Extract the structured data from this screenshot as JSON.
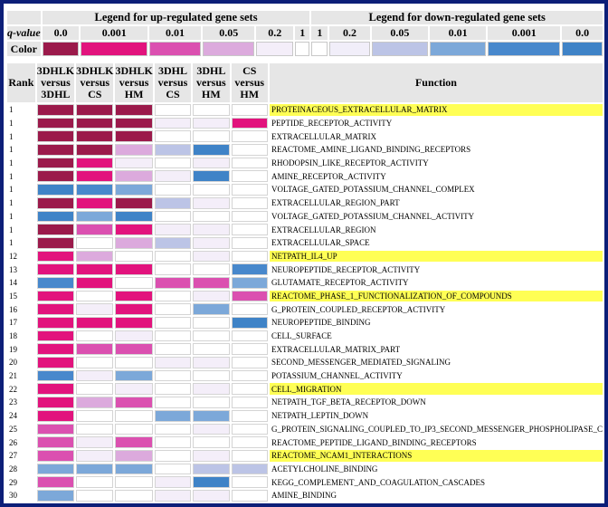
{
  "legend": {
    "up_title": "Legend for up-regulated gene sets",
    "down_title": "Legend for down-regulated gene sets",
    "q_label": "q-value",
    "color_label": "Color",
    "up": [
      {
        "q": "0.0",
        "color": "#9b1a4b"
      },
      {
        "q": "0.001",
        "color": "#e2137d"
      },
      {
        "q": "0.01",
        "color": "#db50b0"
      },
      {
        "q": "0.05",
        "color": "#dcaadd"
      },
      {
        "q": "0.2",
        "color": "#f4eef9"
      },
      {
        "q": "1",
        "color": "#ffffff"
      }
    ],
    "down": [
      {
        "q": "1",
        "color": "#ffffff"
      },
      {
        "q": "0.2",
        "color": "#f1eef9"
      },
      {
        "q": "0.05",
        "color": "#bcc4e6"
      },
      {
        "q": "0.01",
        "color": "#7ca8d9"
      },
      {
        "q": "0.001",
        "color": "#4888cc"
      },
      {
        "q": "0.0",
        "color": "#3f83c7"
      }
    ]
  },
  "table": {
    "headers": {
      "rank": "Rank",
      "comparisons": [
        {
          "line1": "3DHLK",
          "line2": "versus",
          "line3": "3DHL"
        },
        {
          "line1": "3DHLK",
          "line2": "versus",
          "line3": "CS"
        },
        {
          "line1": "3DHLK",
          "line2": "versus",
          "line3": "HM"
        },
        {
          "line1": "3DHL",
          "line2": "versus",
          "line3": "CS"
        },
        {
          "line1": "3DHL",
          "line2": "versus",
          "line3": "HM"
        },
        {
          "line1": "CS",
          "line2": "versus",
          "line3": "HM"
        }
      ],
      "function": "Function"
    },
    "rows": [
      {
        "rank": "1",
        "function": "PROTEINACEOUS_EXTRACELLULAR_MATRIX",
        "highlight": true,
        "cells": [
          "#9b1a4b",
          "#9b1a4b",
          "#9b1a4b",
          "#ffffff",
          "#ffffff",
          "#ffffff"
        ]
      },
      {
        "rank": "1",
        "function": "PEPTIDE_RECEPTOR_ACTIVITY",
        "highlight": false,
        "cells": [
          "#9b1a4b",
          "#9b1a4b",
          "#9b1a4b",
          "#f4eef9",
          "#f4eef9",
          "#e2137d"
        ]
      },
      {
        "rank": "1",
        "function": "EXTRACELLULAR_MATRIX",
        "highlight": false,
        "cells": [
          "#9b1a4b",
          "#9b1a4b",
          "#9b1a4b",
          "#ffffff",
          "#ffffff",
          "#ffffff"
        ]
      },
      {
        "rank": "1",
        "function": "REACTOME_AMINE_LIGAND_BINDING_RECEPTORS",
        "highlight": false,
        "cells": [
          "#9b1a4b",
          "#9b1a4b",
          "#dcaadd",
          "#bcc4e6",
          "#3f83c7",
          "#ffffff"
        ]
      },
      {
        "rank": "1",
        "function": "RHODOPSIN_LIKE_RECEPTOR_ACTIVITY",
        "highlight": false,
        "cells": [
          "#9b1a4b",
          "#e2137d",
          "#f4eef9",
          "#ffffff",
          "#f4eef9",
          "#ffffff"
        ]
      },
      {
        "rank": "1",
        "function": "AMINE_RECEPTOR_ACTIVITY",
        "highlight": false,
        "cells": [
          "#9b1a4b",
          "#e2137d",
          "#dcaadd",
          "#f4eef9",
          "#3f83c7",
          "#ffffff"
        ]
      },
      {
        "rank": "1",
        "function": "VOLTAGE_GATED_POTASSIUM_CHANNEL_COMPLEX",
        "highlight": false,
        "cells": [
          "#3f83c7",
          "#4888cc",
          "#7ca8d9",
          "#ffffff",
          "#ffffff",
          "#ffffff"
        ]
      },
      {
        "rank": "1",
        "function": "EXTRACELLULAR_REGION_PART",
        "highlight": false,
        "cells": [
          "#9b1a4b",
          "#e2137d",
          "#9b1a4b",
          "#bcc4e6",
          "#f4eef9",
          "#ffffff"
        ]
      },
      {
        "rank": "1",
        "function": "VOLTAGE_GATED_POTASSIUM_CHANNEL_ACTIVITY",
        "highlight": false,
        "cells": [
          "#3f83c7",
          "#7ca8d9",
          "#3f83c7",
          "#ffffff",
          "#ffffff",
          "#ffffff"
        ]
      },
      {
        "rank": "1",
        "function": "EXTRACELLULAR_REGION",
        "highlight": false,
        "cells": [
          "#9b1a4b",
          "#db50b0",
          "#e2137d",
          "#f4eef9",
          "#f4eef9",
          "#ffffff"
        ]
      },
      {
        "rank": "1",
        "function": "EXTRACELLULAR_SPACE",
        "highlight": false,
        "cells": [
          "#9b1a4b",
          "#ffffff",
          "#dcaadd",
          "#bcc4e6",
          "#f4eef9",
          "#ffffff"
        ]
      },
      {
        "rank": "12",
        "function": "NETPATH_IL4_UP",
        "highlight": true,
        "cells": [
          "#e2137d",
          "#dcaadd",
          "#ffffff",
          "#ffffff",
          "#f4eef9",
          "#ffffff"
        ]
      },
      {
        "rank": "13",
        "function": "NEUROPEPTIDE_RECEPTOR_ACTIVITY",
        "highlight": false,
        "cells": [
          "#e2137d",
          "#e2137d",
          "#e2137d",
          "#ffffff",
          "#ffffff",
          "#4888cc"
        ]
      },
      {
        "rank": "14",
        "function": "GLUTAMATE_RECEPTOR_ACTIVITY",
        "highlight": false,
        "cells": [
          "#4888cc",
          "#e2137d",
          "#ffffff",
          "#db50b0",
          "#db50b0",
          "#7ca8d9"
        ]
      },
      {
        "rank": "15",
        "function": "REACTOME_PHASE_1_FUNCTIONALIZATION_OF_COMPOUNDS",
        "highlight": true,
        "cells": [
          "#e2137d",
          "#ffffff",
          "#e2137d",
          "#ffffff",
          "#f4eef9",
          "#db50b0"
        ]
      },
      {
        "rank": "16",
        "function": "G_PROTEIN_COUPLED_RECEPTOR_ACTIVITY",
        "highlight": false,
        "cells": [
          "#e2137d",
          "#f4eef9",
          "#e2137d",
          "#ffffff",
          "#7ca8d9",
          "#ffffff"
        ]
      },
      {
        "rank": "17",
        "function": "NEUROPEPTIDE_BINDING",
        "highlight": false,
        "cells": [
          "#e2137d",
          "#e2137d",
          "#e2137d",
          "#ffffff",
          "#ffffff",
          "#3f83c7"
        ]
      },
      {
        "rank": "18",
        "function": "CELL_SURFACE",
        "highlight": false,
        "cells": [
          "#e2137d",
          "#ffffff",
          "#f4eef9",
          "#ffffff",
          "#ffffff",
          "#ffffff"
        ]
      },
      {
        "rank": "19",
        "function": "EXTRACELLULAR_MATRIX_PART",
        "highlight": false,
        "cells": [
          "#e2137d",
          "#db50b0",
          "#db50b0",
          "#ffffff",
          "#ffffff",
          "#ffffff"
        ]
      },
      {
        "rank": "20",
        "function": "SECOND_MESSENGER_MEDIATED_SIGNALING",
        "highlight": false,
        "cells": [
          "#e2137d",
          "#ffffff",
          "#ffffff",
          "#f4eef9",
          "#f4eef9",
          "#ffffff"
        ]
      },
      {
        "rank": "21",
        "function": "POTASSIUM_CHANNEL_ACTIVITY",
        "highlight": false,
        "cells": [
          "#4888cc",
          "#f4eef9",
          "#7ca8d9",
          "#ffffff",
          "#ffffff",
          "#ffffff"
        ]
      },
      {
        "rank": "22",
        "function": "CELL_MIGRATION",
        "highlight": true,
        "cells": [
          "#e2137d",
          "#ffffff",
          "#f4eef9",
          "#ffffff",
          "#f4eef9",
          "#ffffff"
        ]
      },
      {
        "rank": "23",
        "function": "NETPATH_TGF_BETA_RECEPTOR_DOWN",
        "highlight": false,
        "cells": [
          "#e2137d",
          "#dcaadd",
          "#db50b0",
          "#ffffff",
          "#ffffff",
          "#ffffff"
        ]
      },
      {
        "rank": "24",
        "function": "NETPATH_LEPTIN_DOWN",
        "highlight": false,
        "cells": [
          "#e2137d",
          "#ffffff",
          "#ffffff",
          "#7ca8d9",
          "#7ca8d9",
          "#ffffff"
        ]
      },
      {
        "rank": "25",
        "function": "G_PROTEIN_SIGNALING_COUPLED_TO_IP3_SECOND_MESSENGER_PHOSPHOLIPASE_C",
        "highlight": false,
        "cells": [
          "#db50b0",
          "#ffffff",
          "#ffffff",
          "#ffffff",
          "#f4eef9",
          "#ffffff"
        ]
      },
      {
        "rank": "26",
        "function": "REACTOME_PEPTIDE_LIGAND_BINDING_RECEPTORS",
        "highlight": false,
        "cells": [
          "#db50b0",
          "#f4eef9",
          "#db50b0",
          "#ffffff",
          "#ffffff",
          "#ffffff"
        ]
      },
      {
        "rank": "27",
        "function": "REACTOME_NCAM1_INTERACTIONS",
        "highlight": true,
        "cells": [
          "#db50b0",
          "#f4eef9",
          "#dcaadd",
          "#ffffff",
          "#f4eef9",
          "#ffffff"
        ]
      },
      {
        "rank": "28",
        "function": "ACETYLCHOLINE_BINDING",
        "highlight": false,
        "cells": [
          "#7ca8d9",
          "#7ca8d9",
          "#7ca8d9",
          "#ffffff",
          "#bcc4e6",
          "#bcc4e6"
        ]
      },
      {
        "rank": "29",
        "function": "KEGG_COMPLEMENT_AND_COAGULATION_CASCADES",
        "highlight": false,
        "cells": [
          "#db50b0",
          "#ffffff",
          "#ffffff",
          "#f4eef9",
          "#3f83c7",
          "#ffffff"
        ]
      },
      {
        "rank": "30",
        "function": "AMINE_BINDING",
        "highlight": false,
        "cells": [
          "#7ca8d9",
          "#ffffff",
          "#ffffff",
          "#f4eef9",
          "#f4eef9",
          "#ffffff"
        ]
      }
    ]
  }
}
